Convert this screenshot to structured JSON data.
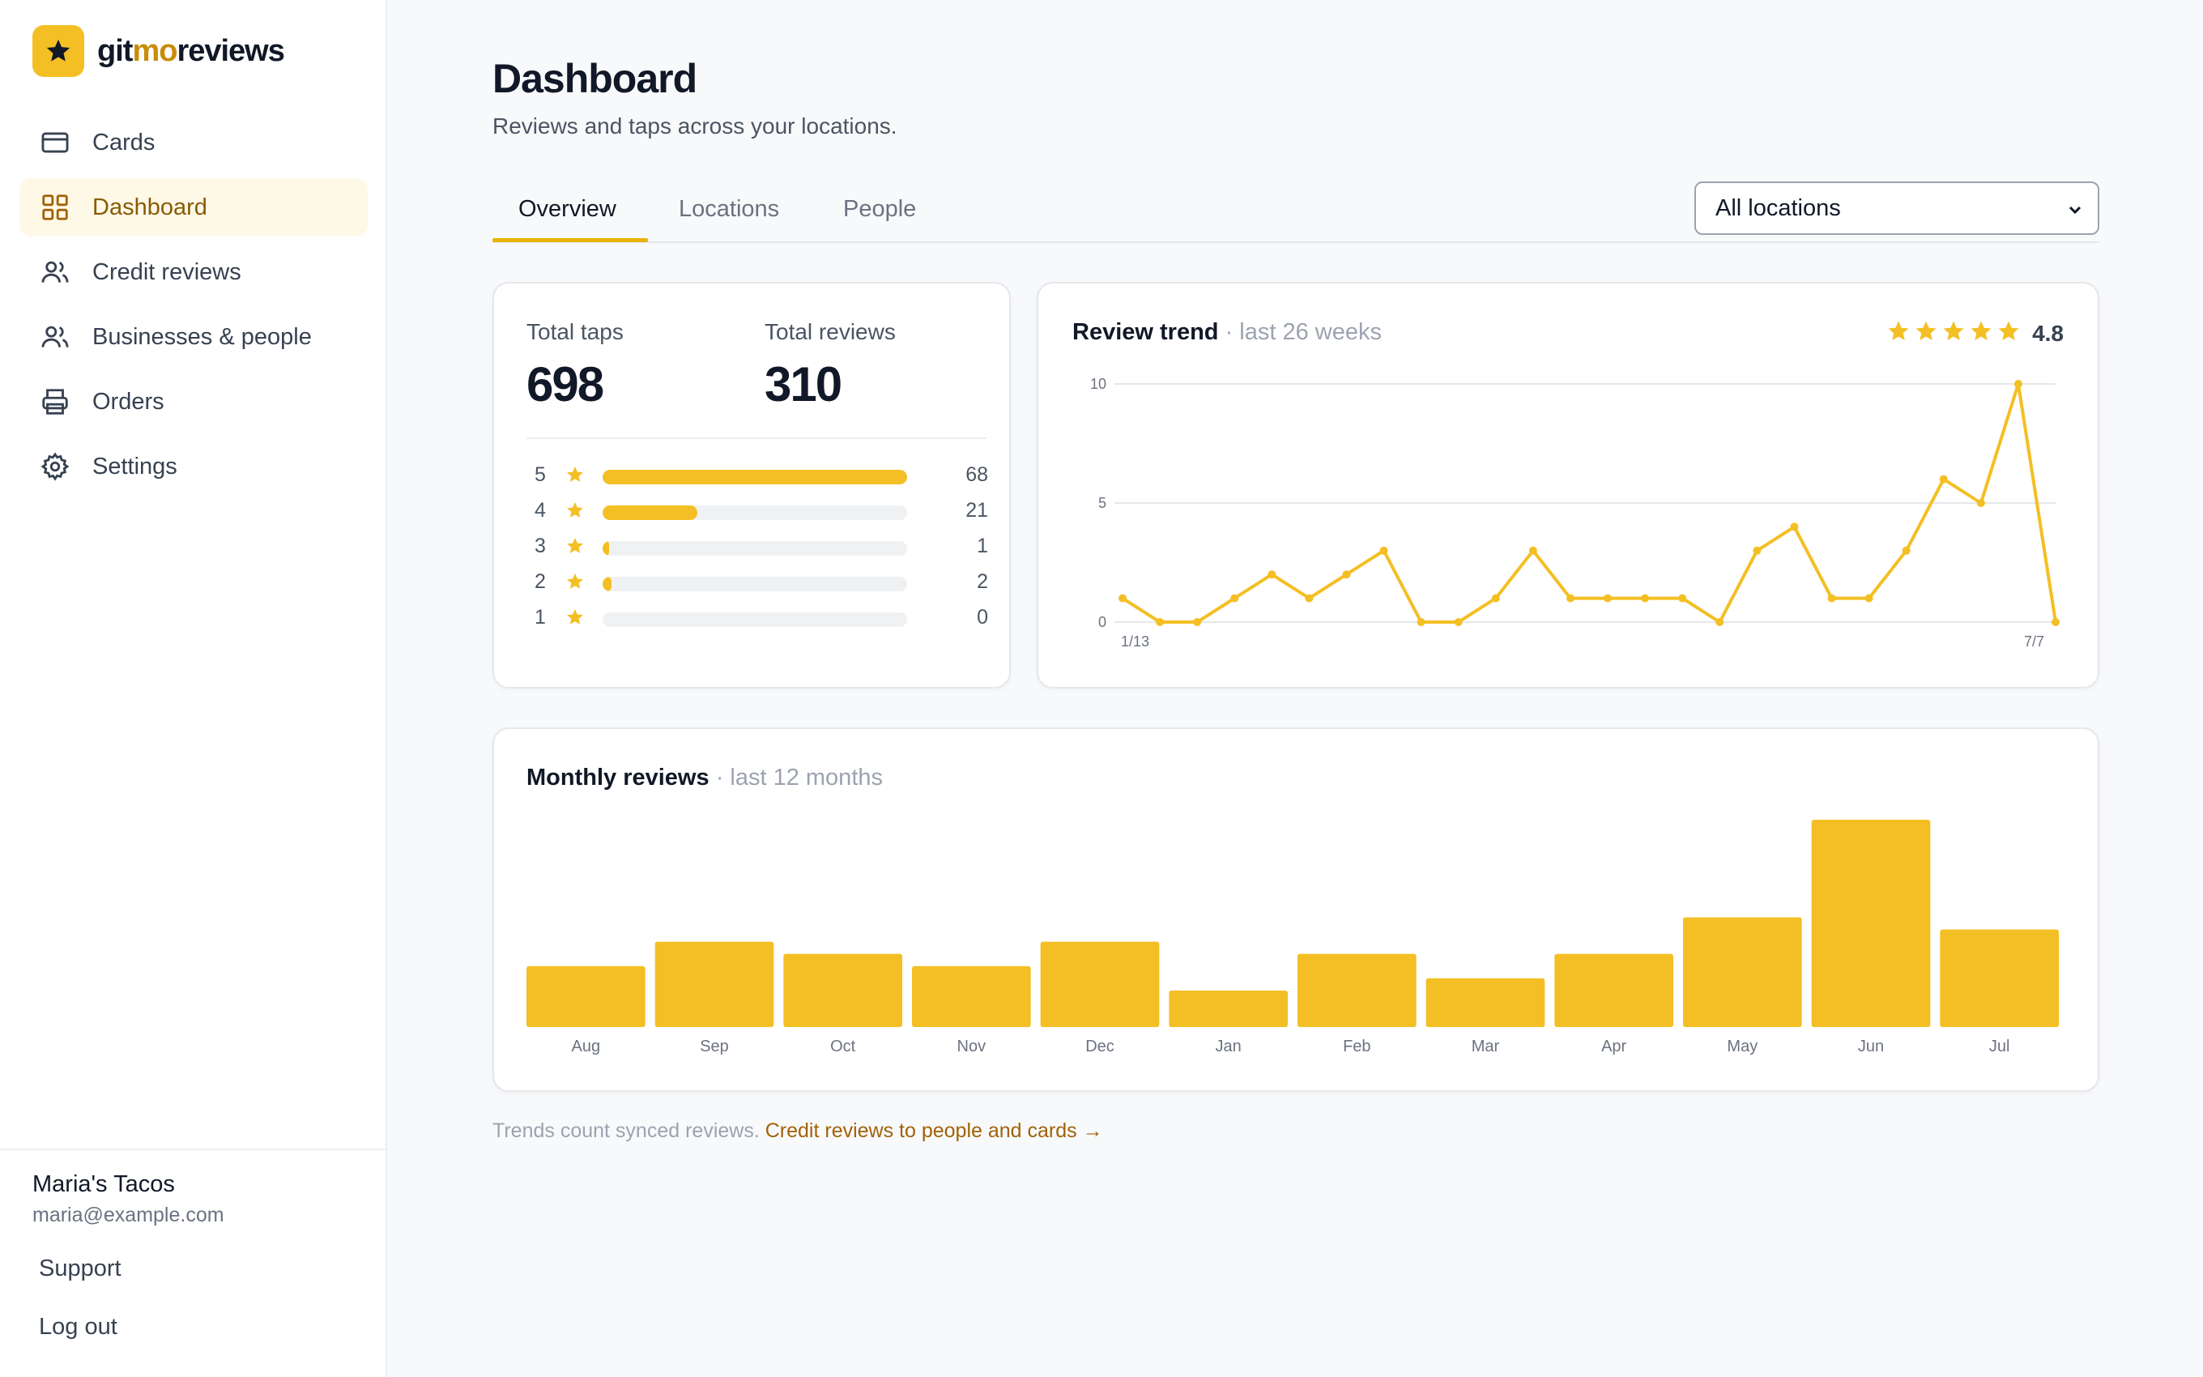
{
  "brand": {
    "name_part1": "git",
    "name_part2": "mo",
    "name_part3": "reviews"
  },
  "sidebar": {
    "items": [
      {
        "label": "Cards",
        "icon": "card-icon",
        "active": false
      },
      {
        "label": "Dashboard",
        "icon": "dashboard-grid-icon",
        "active": true
      },
      {
        "label": "Credit reviews",
        "icon": "users-icon",
        "active": false
      },
      {
        "label": "Businesses & people",
        "icon": "users-icon",
        "active": false
      },
      {
        "label": "Orders",
        "icon": "printer-icon",
        "active": false
      },
      {
        "label": "Settings",
        "icon": "gear-icon",
        "active": false
      }
    ],
    "account": {
      "name": "Maria's Tacos",
      "email": "maria@example.com"
    },
    "support_label": "Support",
    "logout_label": "Log out"
  },
  "header": {
    "title": "Dashboard",
    "subtitle": "Reviews and taps across your locations."
  },
  "tabs": [
    {
      "label": "Overview",
      "active": true
    },
    {
      "label": "Locations",
      "active": false
    },
    {
      "label": "People",
      "active": false
    }
  ],
  "location_select": {
    "value": "All locations"
  },
  "stats": {
    "taps_label": "Total taps",
    "taps_value": "698",
    "reviews_label": "Total reviews",
    "reviews_value": "310",
    "rating_breakdown": [
      {
        "stars": "5",
        "count": "68",
        "fraction": 1.0
      },
      {
        "stars": "4",
        "count": "21",
        "fraction": 0.31
      },
      {
        "stars": "3",
        "count": "1",
        "fraction": 0.015
      },
      {
        "stars": "2",
        "count": "2",
        "fraction": 0.03
      },
      {
        "stars": "1",
        "count": "0",
        "fraction": 0.0
      }
    ]
  },
  "trend_card": {
    "title": "Review trend",
    "subtitle": "· last 26 weeks",
    "average": "4.8",
    "star_count": 5
  },
  "monthly_card": {
    "title": "Monthly reviews",
    "subtitle": "· last 12 months"
  },
  "footnote": {
    "text": "Trends count synced reviews.",
    "link": "Credit reviews to people and cards →"
  },
  "colors": {
    "accent": "#f4bf24",
    "accent_dark": "#a16207",
    "active_bg": "#fef9e7"
  },
  "chart_data": [
    {
      "type": "line",
      "x_tick_labels": [
        "1/13",
        "7/7"
      ],
      "y_ticks": [
        0,
        5,
        10
      ],
      "ylim": [
        0,
        10
      ],
      "grid": true,
      "series": [
        {
          "values": [
            1,
            0,
            0,
            1,
            2,
            1,
            2,
            3,
            0,
            0,
            1,
            3,
            1,
            1,
            1,
            1,
            0,
            3,
            4,
            1,
            1,
            3,
            6,
            5,
            10,
            0
          ]
        }
      ]
    },
    {
      "type": "bar",
      "categories": [
        "Aug",
        "Sep",
        "Oct",
        "Nov",
        "Dec",
        "Jan",
        "Feb",
        "Mar",
        "Apr",
        "May",
        "Jun",
        "Jul"
      ],
      "values": [
        10,
        14,
        12,
        10,
        14,
        6,
        12,
        8,
        12,
        18,
        34,
        16
      ]
    }
  ]
}
